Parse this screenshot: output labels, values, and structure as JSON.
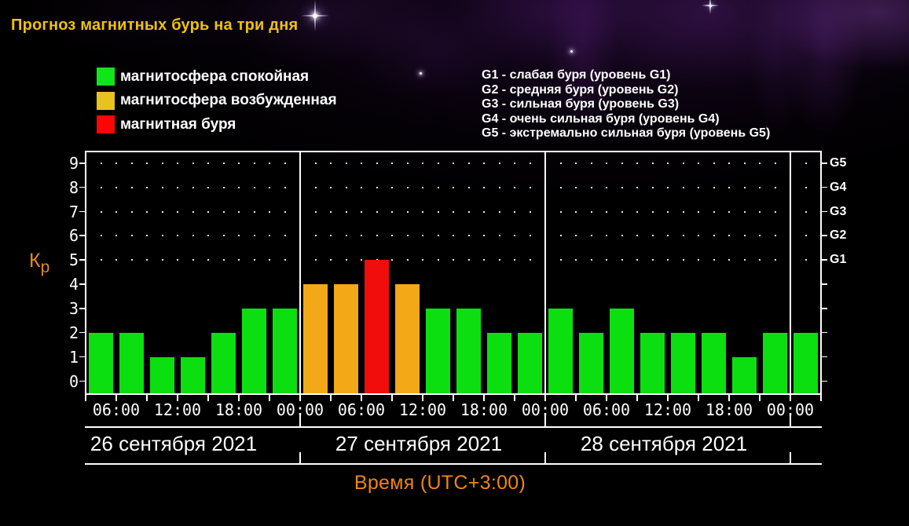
{
  "title": "Прогноз магнитных бурь на три дня",
  "legend": {
    "items": [
      {
        "id": "quiet",
        "color": "#12e41c",
        "label": "магнитосфера спокойная"
      },
      {
        "id": "excited",
        "color": "#e7c31f",
        "label": "магнитосфера возбужденная"
      },
      {
        "id": "storm",
        "color": "#fb0505",
        "label": "магнитная буря"
      }
    ]
  },
  "storm_scale_legend": [
    "G1 - слабая буря (уровень G1)",
    "G2 - средняя буря (уровень G2)",
    "G3 - сильная буря (уровень G3)",
    "G4 - очень сильная буря (уровень G4)",
    "G5 - экстремально сильная буря (уровень G5)"
  ],
  "chart_data": {
    "type": "bar",
    "title": "Прогноз магнитных бурь на три дня",
    "ylabel": "Кр",
    "ylabel_main": "К",
    "ylabel_sub": "р",
    "xlabel": "Время (UTC+3:00)",
    "ylim": [
      -0.5,
      9.5
    ],
    "yticks": [
      0,
      1,
      2,
      3,
      4,
      5,
      6,
      7,
      8,
      9
    ],
    "x_tick_labels": [
      "06:00",
      "12:00",
      "18:00",
      "00:00",
      "06:00",
      "12:00",
      "18:00",
      "00:00",
      "06:00",
      "12:00",
      "18:00",
      "00:00"
    ],
    "hours_per_bar": 3,
    "first_bar_start_hour": 3,
    "days": [
      {
        "date": "26 сентября 2021",
        "kp": [
          2,
          2,
          1,
          1,
          2,
          3,
          3
        ]
      },
      {
        "date": "27 сентября 2021",
        "kp": [
          4,
          4,
          5,
          4,
          3,
          3,
          2,
          2
        ]
      },
      {
        "date": "28 сентября 2021",
        "kp": [
          3,
          2,
          3,
          2,
          2,
          2,
          1,
          2
        ]
      }
    ],
    "next_day_spillover_kp": [
      2
    ],
    "right_axis": {
      "labels": [
        "G5",
        "G4",
        "G3",
        "G2",
        "G1"
      ],
      "levels": [
        9,
        8,
        7,
        6,
        5
      ]
    },
    "bar_colors": {
      "quiet": "#0cdf10",
      "excited": "#f2a817",
      "storm": "#f20d0d"
    },
    "color_rule": {
      "excited_min_kp": 4,
      "storm_min_kp": 5
    },
    "grid_dot_levels": [
      5,
      6,
      7,
      8,
      9
    ],
    "legend_position": "top-left",
    "grid": "dotted"
  },
  "colors": {
    "background": "#000000",
    "title": "#eec112",
    "xaxis_title": "#ef8512",
    "kp_label": "#e68a1a",
    "axis": "#ffffff",
    "text": "#ffffff"
  }
}
